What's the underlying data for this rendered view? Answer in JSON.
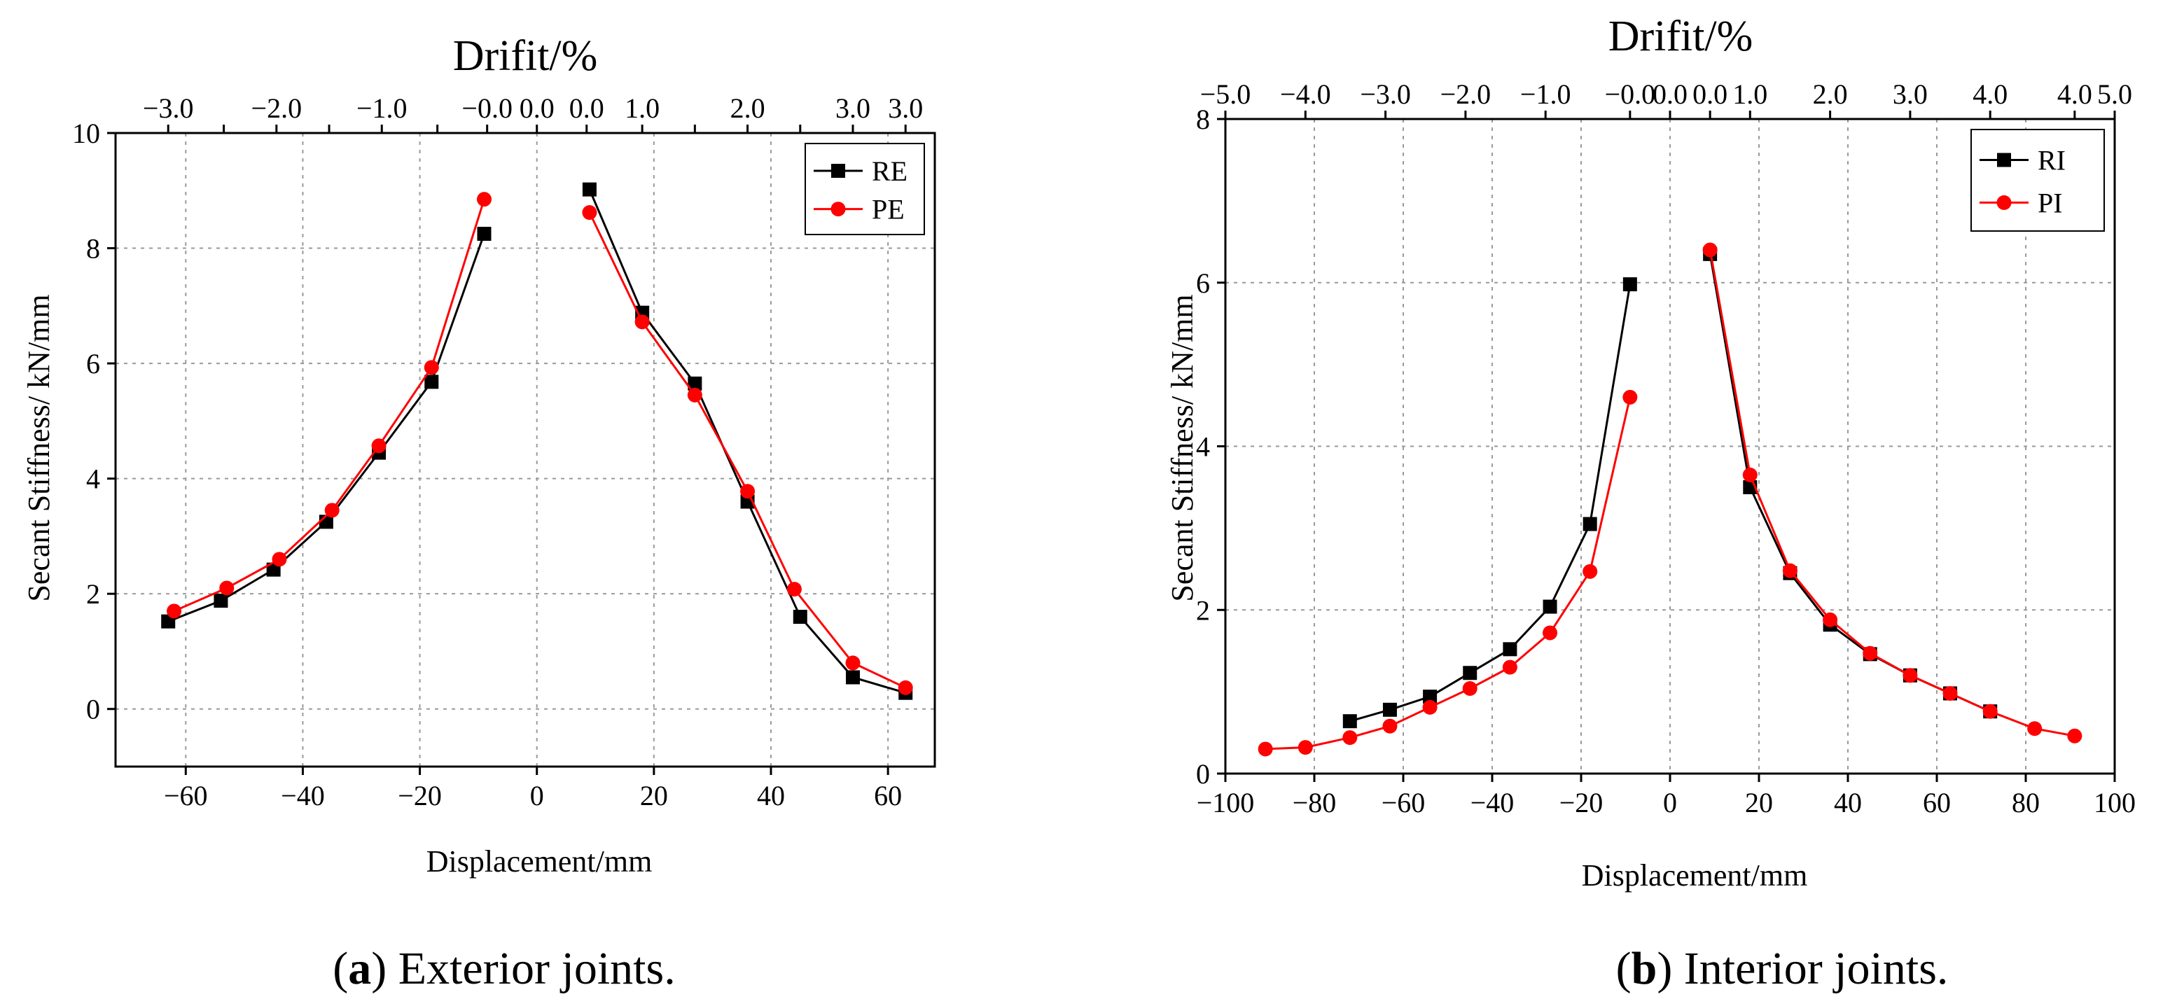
{
  "chart_data": [
    {
      "type": "line",
      "panel_id": "a",
      "caption_letter": "a",
      "caption_prefix": "(",
      "caption_suffix": ") Exterior joints.",
      "xlabel": "Displacement/mm",
      "ylabel": "Secant Stiffness/ kN/mm",
      "top_xlabel": "Drifit/%",
      "xlim": [
        -72,
        68
      ],
      "ylim": [
        -1,
        10
      ],
      "x_ticks": [
        -60,
        -40,
        -20,
        0,
        20,
        40,
        60
      ],
      "x_tick_labels": [
        "−60",
        "−40",
        "−20",
        "0",
        "20",
        "40",
        "60"
      ],
      "y_ticks": [
        0,
        2,
        4,
        6,
        8,
        10
      ],
      "y_tick_labels": [
        "0",
        "2",
        "4",
        "6",
        "8",
        "10"
      ],
      "grid": true,
      "top_ticks": [
        {
          "x": -63,
          "label": "−3.0"
        },
        {
          "x": -53.5,
          "label": ""
        },
        {
          "x": -44.5,
          "label": "−2.0"
        },
        {
          "x": -35.5,
          "label": ""
        },
        {
          "x": -26.5,
          "label": "−1.0"
        },
        {
          "x": -17,
          "label": ""
        },
        {
          "x": -8.5,
          "label": "−0.0"
        },
        {
          "x": 0,
          "label": "0.0"
        },
        {
          "x": 8.5,
          "label": "0.0"
        },
        {
          "x": 18,
          "label": "1.0"
        },
        {
          "x": 27,
          "label": ""
        },
        {
          "x": 36,
          "label": "2.0"
        },
        {
          "x": 45,
          "label": ""
        },
        {
          "x": 54,
          "label": "3.0"
        },
        {
          "x": 63,
          "label": "3.0"
        }
      ],
      "legend": {
        "placement": "top-right",
        "entries": [
          "RE",
          "PE"
        ]
      },
      "series": [
        {
          "name": "RE",
          "color": "#000000",
          "marker": "square",
          "segments": [
            [
              [
                -63,
                1.52
              ],
              [
                -54,
                1.88
              ],
              [
                -45,
                2.42
              ],
              [
                -36,
                3.25
              ],
              [
                -27,
                4.45
              ],
              [
                -18,
                5.68
              ],
              [
                -9,
                8.25
              ]
            ],
            [
              [
                9,
                9.02
              ],
              [
                18,
                6.88
              ],
              [
                27,
                5.65
              ],
              [
                36,
                3.6
              ],
              [
                45,
                1.6
              ],
              [
                54,
                0.55
              ],
              [
                63,
                0.28
              ]
            ]
          ]
        },
        {
          "name": "PE",
          "color": "#ff0000",
          "marker": "circle",
          "segments": [
            [
              [
                -62,
                1.7
              ],
              [
                -53,
                2.1
              ],
              [
                -44,
                2.6
              ],
              [
                -35,
                3.45
              ],
              [
                -27,
                4.57
              ],
              [
                -18,
                5.93
              ],
              [
                -9,
                8.85
              ]
            ],
            [
              [
                9,
                8.62
              ],
              [
                18,
                6.72
              ],
              [
                27,
                5.45
              ],
              [
                36,
                3.78
              ],
              [
                44,
                2.08
              ],
              [
                54,
                0.8
              ],
              [
                63,
                0.37
              ]
            ]
          ]
        }
      ]
    },
    {
      "type": "line",
      "panel_id": "b",
      "caption_letter": "b",
      "caption_prefix": "(",
      "caption_suffix": ") Interior joints.",
      "xlabel": "Displacement/mm",
      "ylabel": "Secant Stiffness/ kN/mm",
      "top_xlabel": "Drifit/%",
      "xlim": [
        -100,
        100
      ],
      "ylim": [
        0,
        8
      ],
      "x_ticks": [
        -100,
        -80,
        -60,
        -40,
        -20,
        0,
        20,
        40,
        60,
        80,
        100
      ],
      "x_tick_labels": [
        "−100",
        "−80",
        "−60",
        "−40",
        "−20",
        "0",
        "20",
        "40",
        "60",
        "80",
        "100"
      ],
      "y_ticks": [
        0,
        2,
        4,
        6,
        8
      ],
      "y_tick_labels": [
        "0",
        "2",
        "4",
        "6",
        "8"
      ],
      "grid": true,
      "top_ticks": [
        {
          "x": -100,
          "label": "−5.0"
        },
        {
          "x": -82,
          "label": "−4.0"
        },
        {
          "x": -64,
          "label": "−3.0"
        },
        {
          "x": -46,
          "label": "−2.0"
        },
        {
          "x": -28,
          "label": "−1.0"
        },
        {
          "x": -9,
          "label": "−0.0"
        },
        {
          "x": 0,
          "label": "0.0"
        },
        {
          "x": 9,
          "label": "0.0"
        },
        {
          "x": 18,
          "label": "1.0"
        },
        {
          "x": 36,
          "label": "2.0"
        },
        {
          "x": 54,
          "label": "3.0"
        },
        {
          "x": 72,
          "label": "4.0"
        },
        {
          "x": 91,
          "label": "4.0"
        },
        {
          "x": 100,
          "label": "5.0"
        }
      ],
      "legend": {
        "placement": "top-right",
        "entries": [
          "RI",
          "PI"
        ]
      },
      "series": [
        {
          "name": "RI",
          "color": "#000000",
          "marker": "square",
          "segments": [
            [
              [
                -72,
                0.64
              ],
              [
                -63,
                0.78
              ],
              [
                -54,
                0.94
              ],
              [
                -45,
                1.23
              ],
              [
                -36,
                1.52
              ],
              [
                -27,
                2.04
              ],
              [
                -18,
                3.05
              ],
              [
                -9,
                5.98
              ]
            ],
            [
              [
                9,
                6.35
              ],
              [
                18,
                3.5
              ],
              [
                27,
                2.45
              ],
              [
                36,
                1.82
              ],
              [
                45,
                1.46
              ],
              [
                54,
                1.2
              ],
              [
                63,
                0.98
              ],
              [
                72,
                0.76
              ]
            ]
          ]
        },
        {
          "name": "PI",
          "color": "#ff0000",
          "marker": "circle",
          "segments": [
            [
              [
                -91,
                0.3
              ],
              [
                -82,
                0.32
              ],
              [
                -72,
                0.44
              ],
              [
                -63,
                0.58
              ],
              [
                -54,
                0.81
              ],
              [
                -45,
                1.04
              ],
              [
                -36,
                1.3
              ],
              [
                -27,
                1.72
              ],
              [
                -18,
                2.47
              ],
              [
                -9,
                4.6
              ]
            ],
            [
              [
                9,
                6.4
              ],
              [
                18,
                3.65
              ],
              [
                27,
                2.48
              ],
              [
                36,
                1.88
              ],
              [
                45,
                1.47
              ],
              [
                54,
                1.2
              ],
              [
                63,
                0.98
              ],
              [
                72,
                0.76
              ],
              [
                82,
                0.55
              ],
              [
                91,
                0.46
              ]
            ]
          ]
        }
      ]
    }
  ]
}
